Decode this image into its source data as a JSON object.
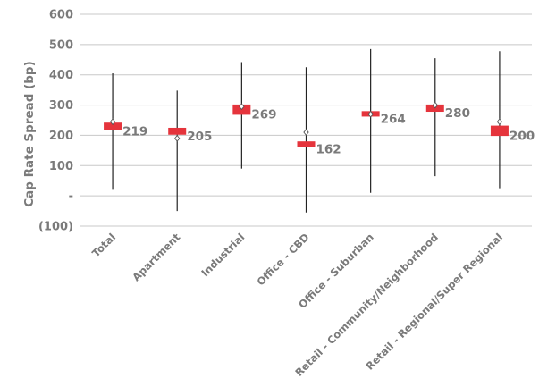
{
  "chart_data": {
    "type": "box",
    "ylabel": "Cap Rate Spread (bp)",
    "ylim": [
      -100,
      600
    ],
    "yticks": [
      {
        "value": 600,
        "label": "600"
      },
      {
        "value": 500,
        "label": "500"
      },
      {
        "value": 400,
        "label": "400"
      },
      {
        "value": 300,
        "label": "300"
      },
      {
        "value": 200,
        "label": "200"
      },
      {
        "value": 100,
        "label": "100"
      },
      {
        "value": 0,
        "label": "-"
      },
      {
        "value": -100,
        "label": "(100)"
      }
    ],
    "grid": true,
    "categories": [
      "Total",
      "Apartment",
      "Industrial",
      "Office - CBD",
      "Office - Suburban",
      "Retail - Community/Neighborhood",
      "Retail - Regional/Super Regional"
    ],
    "series": [
      {
        "type": "range",
        "low": [
          20,
          -50,
          90,
          -55,
          10,
          65,
          25
        ],
        "high": [
          405,
          348,
          442,
          425,
          485,
          455,
          478
        ]
      },
      {
        "type": "bar",
        "label_values": [
          "219",
          "205",
          "269",
          "162",
          "264",
          "280",
          "200"
        ],
        "low": [
          218,
          202,
          268,
          160,
          262,
          278,
          198
        ],
        "high": [
          242,
          225,
          302,
          180,
          280,
          302,
          232
        ]
      },
      {
        "type": "marker",
        "values": [
          245,
          190,
          295,
          210,
          270,
          300,
          245
        ]
      }
    ],
    "colors": {
      "bar": "#e5343c",
      "line": "#222222",
      "grid": "#c8c8c8",
      "text": "#7a7a7a"
    }
  }
}
